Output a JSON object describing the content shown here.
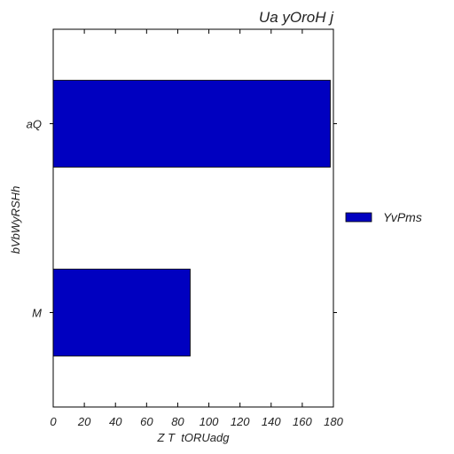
{
  "chart_data": {
    "type": "bar",
    "orientation": "horizontal",
    "title": "Ua yOroH j",
    "xlabel": "Z T  tORUadg",
    "ylabel": "bVbWyRSHh",
    "categories": [
      "aQ",
      "M"
    ],
    "series": [
      {
        "name": "YvPms",
        "values": [
          178,
          88
        ],
        "color": "#0000c0"
      }
    ],
    "xlim": [
      0,
      180
    ],
    "xticks": [
      0,
      20,
      40,
      60,
      80,
      100,
      120,
      140,
      160,
      180
    ],
    "grid": false,
    "legend": "right"
  }
}
